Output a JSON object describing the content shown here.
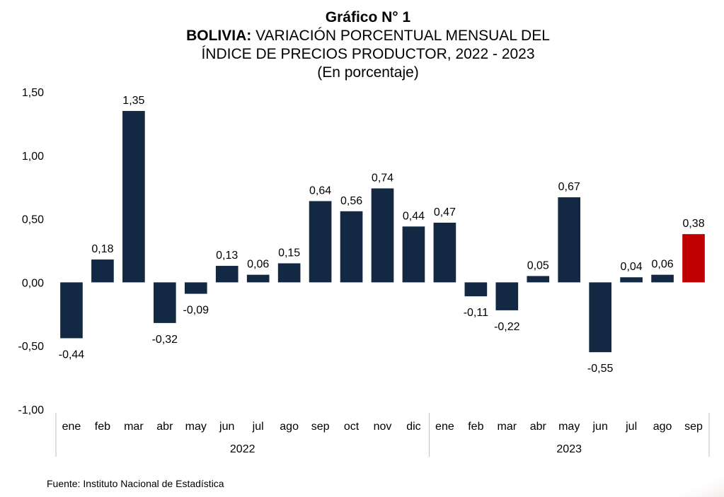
{
  "header": {
    "label": "Gráfico N° 1",
    "country": "BOLIVIA:",
    "title_line1": "VARIACIÓN PORCENTUAL MENSUAL DEL",
    "title_line2": "ÍNDICE DE PRECIOS PRODUCTOR, 2022 - 2023",
    "subtitle": "(En porcentaje)"
  },
  "footer": {
    "source": "Fuente: Instituto Nacional de Estadística"
  },
  "colors": {
    "bar": "#132843",
    "highlight": "#c00000",
    "axis": "#bfbfbf"
  },
  "chart_data": {
    "type": "bar",
    "title": "BOLIVIA: VARIACIÓN PORCENTUAL MENSUAL DEL ÍNDICE DE PRECIOS PRODUCTOR, 2022 - 2023",
    "subtitle": "(En porcentaje)",
    "categories": [
      "ene",
      "feb",
      "mar",
      "abr",
      "may",
      "jun",
      "jul",
      "ago",
      "sep",
      "oct",
      "nov",
      "dic",
      "ene",
      "feb",
      "mar",
      "abr",
      "may",
      "jun",
      "jul",
      "ago",
      "sep"
    ],
    "groups": [
      {
        "label": "2022",
        "count": 12
      },
      {
        "label": "2023",
        "count": 9
      }
    ],
    "values": [
      -0.44,
      0.18,
      1.35,
      -0.32,
      -0.09,
      0.13,
      0.06,
      0.15,
      0.64,
      0.56,
      0.74,
      0.44,
      0.47,
      -0.11,
      -0.22,
      0.05,
      0.67,
      -0.55,
      0.04,
      0.06,
      0.38
    ],
    "data_labels": [
      "-0,44",
      "0,18",
      "1,35",
      "-0,32",
      "-0,09",
      "0,13",
      "0,06",
      "0,15",
      "0,64",
      "0,56",
      "0,74",
      "0,44",
      "0,47",
      "-0,11",
      "-0,22",
      "0,05",
      "0,67",
      "-0,55",
      "0,04",
      "0,06",
      "0,38"
    ],
    "highlight_index": 20,
    "ylim": [
      -1.0,
      1.5
    ],
    "yticks": [
      1.5,
      1.0,
      0.5,
      0.0,
      -0.5,
      -1.0
    ],
    "ytick_labels": [
      "1,50",
      "1,00",
      "0,50",
      "0,00",
      "-0,50",
      "-1,00"
    ],
    "xlabel": "",
    "ylabel": "",
    "grid": false,
    "legend": false
  }
}
